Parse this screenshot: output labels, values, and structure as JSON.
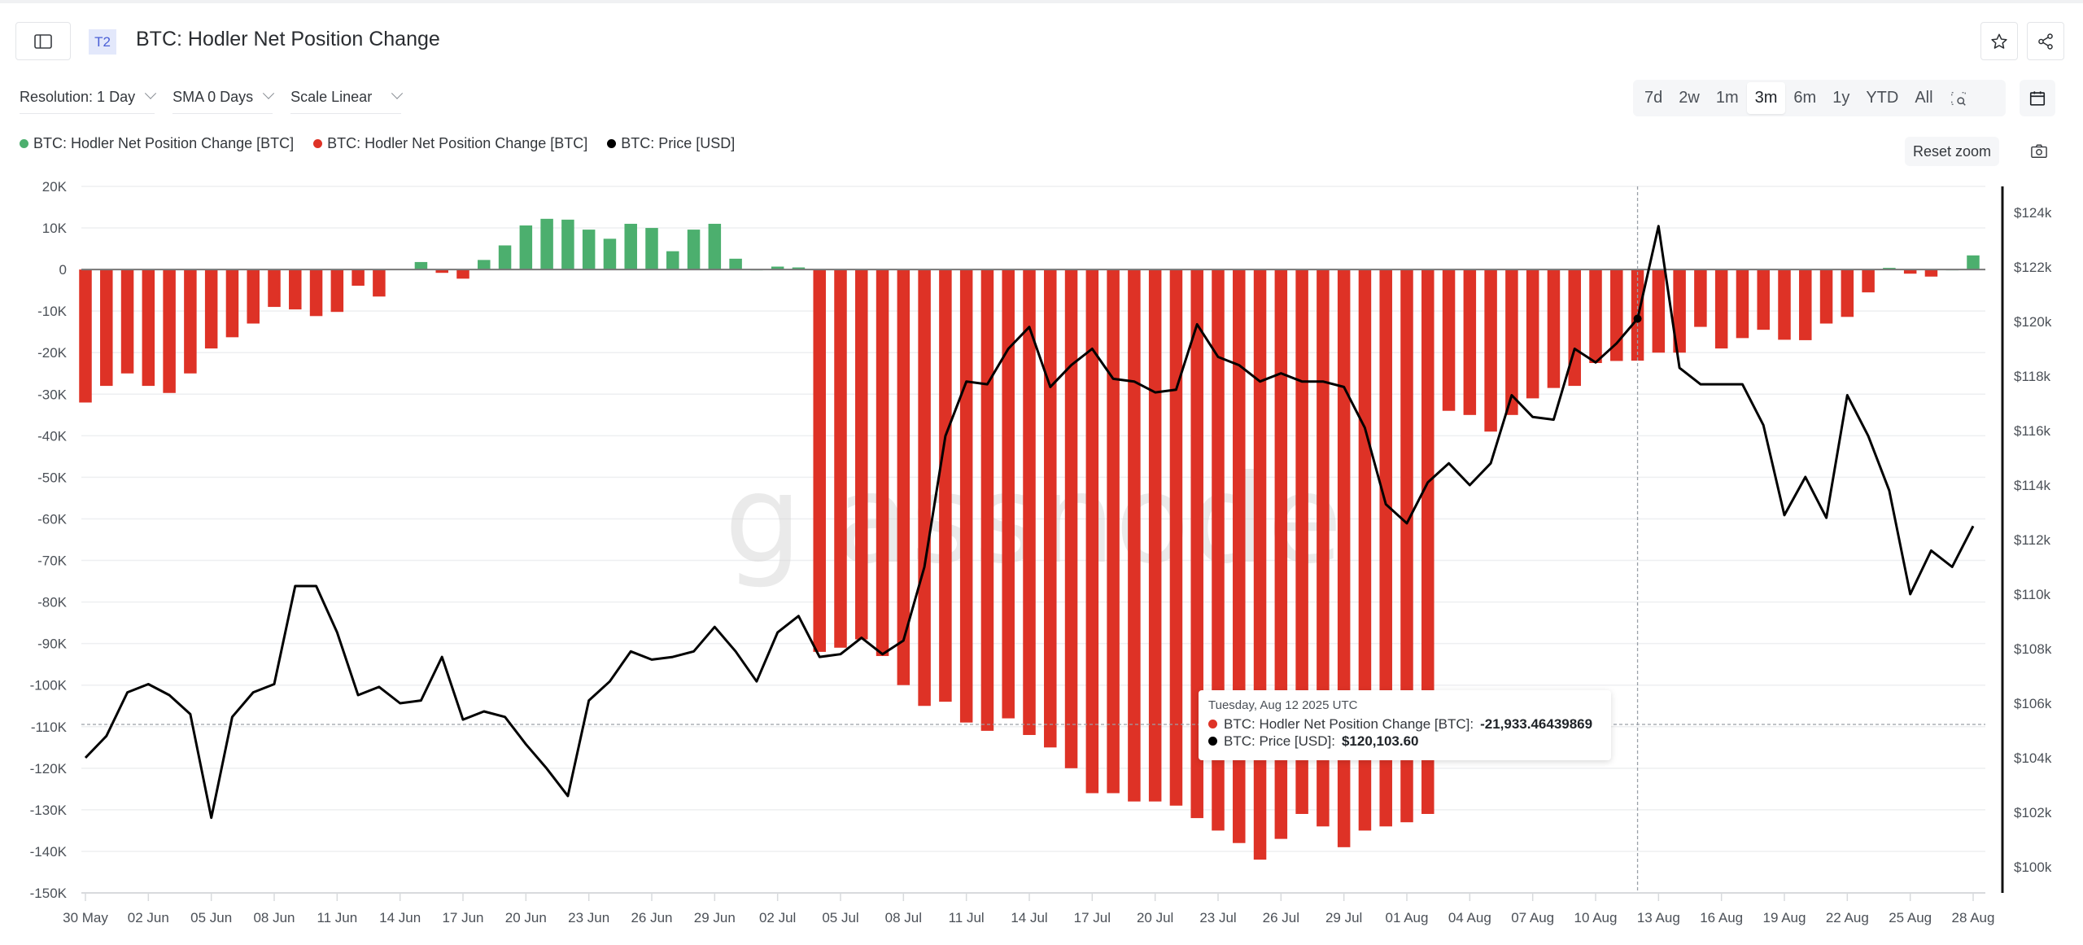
{
  "header": {
    "tier_badge": "T2",
    "title": "BTC: Hodler Net Position Change"
  },
  "controls": {
    "resolution": "Resolution: 1 Day",
    "sma": "SMA 0 Days",
    "scale": "Scale Linear"
  },
  "range_buttons": [
    "7d",
    "2w",
    "1m",
    "3m",
    "6m",
    "1y",
    "YTD",
    "All"
  ],
  "active_range": "3m",
  "reset_zoom_label": "Reset zoom",
  "legend": [
    {
      "label": "BTC: Hodler Net Position Change [BTC]",
      "color": "#4caf6e"
    },
    {
      "label": "BTC: Hodler Net Position Change [BTC]",
      "color": "#de3226"
    },
    {
      "label": "BTC: Price [USD]",
      "color": "#000000"
    }
  ],
  "watermark": "glassnode",
  "tooltip": {
    "date": "Tuesday, Aug 12 2025 UTC",
    "series1_label": "BTC: Hodler Net Position Change [BTC]: ",
    "series1_value": "-21,933.46439869",
    "series2_label": "BTC: Price [USD]: ",
    "series2_value": "$120,103.60"
  },
  "colors": {
    "positive": "#4caf6e",
    "negative": "#de3226",
    "price": "#000000",
    "grid": "#eeeff1",
    "axis_text": "#4b5057"
  },
  "chart_data": {
    "type": "bar",
    "title": "BTC: Hodler Net Position Change",
    "xlabel": "",
    "ylabel": "Hodler Net Position Change [BTC]",
    "y2label": "Price [USD]",
    "ylim": [
      -150000,
      20000
    ],
    "y2lim": [
      99000,
      125000
    ],
    "grid": true,
    "legend_position": "top-left",
    "y_ticks": [
      "20K",
      "10K",
      "0",
      "-10K",
      "-20K",
      "-30K",
      "-40K",
      "-50K",
      "-60K",
      "-70K",
      "-80K",
      "-90K",
      "-100K",
      "-110K",
      "-120K",
      "-130K",
      "-140K",
      "-150K"
    ],
    "y2_ticks": [
      "$124k",
      "$122k",
      "$120k",
      "$118k",
      "$116k",
      "$114k",
      "$112k",
      "$110k",
      "$108k",
      "$106k",
      "$104k",
      "$102k",
      "$100k"
    ],
    "x_tick_labels": [
      "30 May",
      "02 Jun",
      "05 Jun",
      "08 Jun",
      "11 Jun",
      "14 Jun",
      "17 Jun",
      "20 Jun",
      "23 Jun",
      "26 Jun",
      "29 Jun",
      "02 Jul",
      "05 Jul",
      "08 Jul",
      "11 Jul",
      "14 Jul",
      "17 Jul",
      "20 Jul",
      "23 Jul",
      "26 Jul",
      "29 Jul",
      "01 Aug",
      "04 Aug",
      "07 Aug",
      "10 Aug",
      "13 Aug",
      "16 Aug",
      "19 Aug",
      "22 Aug",
      "25 Aug",
      "28 Aug"
    ],
    "x_start": "2025-05-30",
    "x_end": "2025-08-28",
    "series": [
      {
        "name": "BTC: Hodler Net Position Change [BTC]",
        "type": "bar",
        "axis": "left",
        "values": [
          -32000,
          -28000,
          -25000,
          -28000,
          -29700,
          -25000,
          -19000,
          -16300,
          -13000,
          -9000,
          -9600,
          -11200,
          -10200,
          -3900,
          -6500,
          100,
          1800,
          -800,
          -2200,
          2300,
          5800,
          10600,
          12200,
          12000,
          9600,
          7400,
          11000,
          10000,
          4400,
          9600,
          11000,
          2600,
          0,
          700,
          500,
          -92000,
          -91000,
          -89000,
          -93000,
          -100000,
          -105000,
          -104000,
          -109000,
          -111000,
          -108000,
          -112000,
          -115000,
          -120000,
          -126000,
          -126000,
          -128000,
          -128000,
          -129000,
          -132000,
          -135000,
          -138000,
          -142000,
          -137000,
          -131000,
          -134000,
          -139000,
          -135000,
          -134000,
          -133000,
          -131000,
          -34000,
          -35000,
          -39000,
          -35000,
          -31000,
          -28500,
          -28000,
          -22500,
          -22000,
          -21933,
          -20000,
          -20000,
          -13800,
          -19000,
          -16500,
          -14500,
          -16900,
          -17000,
          -13000,
          -11400,
          -5500,
          400,
          -1000,
          -1700,
          0,
          3400
        ]
      },
      {
        "name": "BTC: Price [USD]",
        "type": "line",
        "axis": "right",
        "values": [
          104000,
          104800,
          106400,
          106700,
          106300,
          105600,
          101800,
          105500,
          106400,
          106700,
          110300,
          110300,
          108600,
          106300,
          106600,
          106000,
          106100,
          107700,
          105400,
          105700,
          105500,
          104500,
          103600,
          102600,
          106100,
          106800,
          107900,
          107600,
          107700,
          107900,
          108800,
          107900,
          106800,
          108600,
          109200,
          107700,
          107800,
          108400,
          107800,
          108300,
          111000,
          115800,
          117800,
          117700,
          119000,
          119800,
          117600,
          118400,
          119000,
          117900,
          117800,
          117400,
          117500,
          119900,
          118700,
          118400,
          117800,
          118100,
          117800,
          117800,
          117600,
          116100,
          113300,
          112600,
          114100,
          114800,
          114000,
          114800,
          117300,
          116500,
          116400,
          119000,
          118500,
          119200,
          120104,
          123500,
          118300,
          117700,
          117700,
          117700,
          116200,
          112900,
          114300,
          112800,
          117300,
          115800,
          113800,
          110000,
          111600,
          111000,
          112500
        ]
      }
    ]
  }
}
